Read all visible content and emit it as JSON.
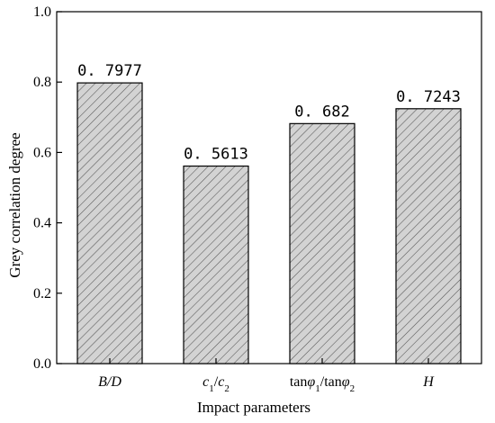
{
  "chart_data": {
    "type": "bar",
    "categories": [
      "B/D",
      "c1/c2",
      "tanφ1/tanφ2",
      "H"
    ],
    "category_label_parts": [
      [
        {
          "t": "B/D",
          "i": true
        }
      ],
      [
        {
          "t": "c",
          "i": true
        },
        {
          "t": "1",
          "sub": true
        },
        {
          "t": "/",
          "i": false
        },
        {
          "t": "c",
          "i": true
        },
        {
          "t": "2",
          "sub": true
        }
      ],
      [
        {
          "t": "tan",
          "i": false
        },
        {
          "t": "φ",
          "i": true
        },
        {
          "t": "1",
          "sub": true
        },
        {
          "t": "/tan",
          "i": false
        },
        {
          "t": "φ",
          "i": true
        },
        {
          "t": "2",
          "sub": true
        }
      ],
      [
        {
          "t": "H",
          "i": true
        }
      ]
    ],
    "values": [
      0.7977,
      0.5613,
      0.682,
      0.7243
    ],
    "value_labels": [
      "0. 7977",
      "0. 5613",
      "0. 682",
      "0. 7243"
    ],
    "xlabel": "Impact parameters",
    "ylabel": "Grey correlation degree",
    "ylim": [
      0.0,
      1.0
    ],
    "yticks": [
      0.0,
      0.2,
      0.4,
      0.6,
      0.8,
      1.0
    ],
    "ytick_labels": [
      "0.0",
      "0.2",
      "0.4",
      "0.6",
      "0.8",
      "1.0"
    ],
    "grid": false,
    "bar_fill": "#d3d3d3",
    "hatch_color": "#555555",
    "edge_color": "#000000"
  }
}
